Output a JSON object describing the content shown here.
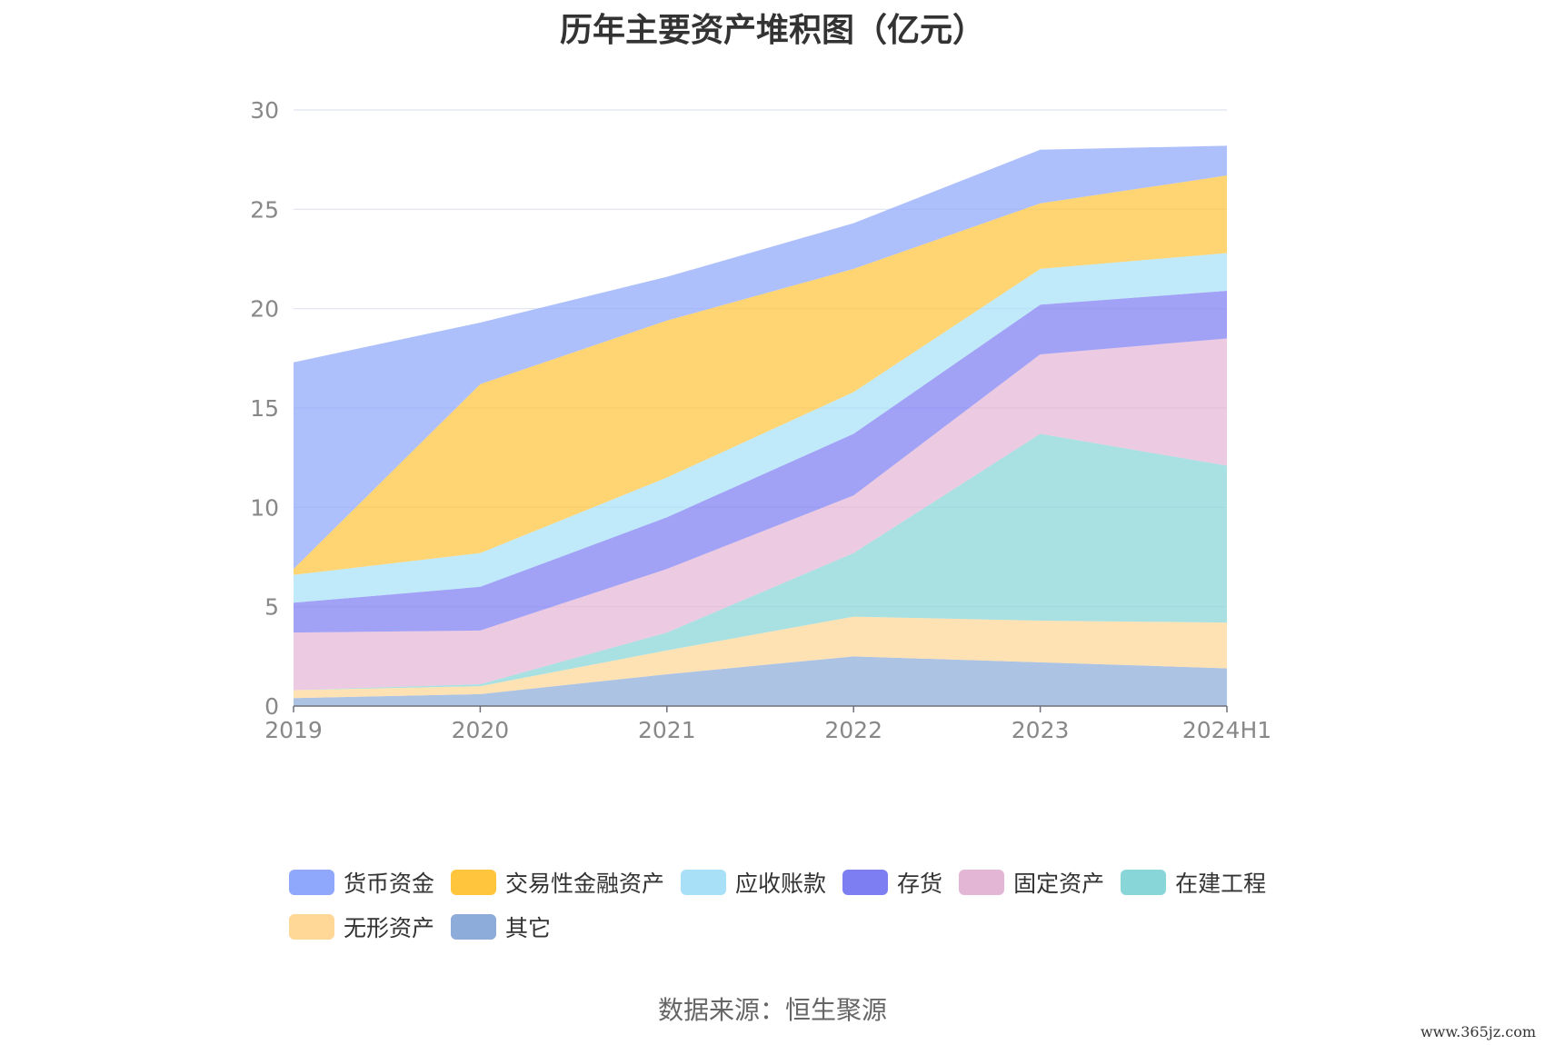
{
  "source_note": "数据来源：恒生聚源",
  "watermark": "www.365jz.com",
  "chart_data": {
    "type": "area",
    "stacked": true,
    "title": "历年主要资产堆积图（亿元）",
    "xlabel": "",
    "ylabel": "",
    "categories": [
      "2019",
      "2020",
      "2021",
      "2022",
      "2023",
      "2024H1"
    ],
    "ylim": [
      0,
      30
    ],
    "yticks": [
      0,
      5,
      10,
      15,
      20,
      25,
      30
    ],
    "grid": true,
    "legend_position": "bottom",
    "series": [
      {
        "name": "其它",
        "color": "#8eacd9",
        "values": [
          0.4,
          0.6,
          1.6,
          2.5,
          2.2,
          1.9
        ]
      },
      {
        "name": "无形资产",
        "color": "#ffd797",
        "values": [
          0.4,
          0.4,
          1.2,
          2.0,
          2.1,
          2.3
        ]
      },
      {
        "name": "在建工程",
        "color": "#88d6d8",
        "values": [
          0.0,
          0.1,
          0.9,
          3.2,
          9.4,
          7.9
        ]
      },
      {
        "name": "固定资产",
        "color": "#e4b6d6",
        "values": [
          2.9,
          2.7,
          3.2,
          2.9,
          4.0,
          6.4
        ]
      },
      {
        "name": "存货",
        "color": "#7d7ef2",
        "values": [
          1.5,
          2.2,
          2.6,
          3.1,
          2.5,
          2.4
        ]
      },
      {
        "name": "应收账款",
        "color": "#a8e0f8",
        "values": [
          1.4,
          1.7,
          2.0,
          2.1,
          1.8,
          1.9
        ]
      },
      {
        "name": "交易性金融资产",
        "color": "#ffc53d",
        "values": [
          0.3,
          8.5,
          7.9,
          6.2,
          3.3,
          3.9
        ]
      },
      {
        "name": "货币资金",
        "color": "#8fa8fb",
        "values": [
          10.4,
          3.1,
          2.2,
          2.3,
          2.7,
          1.5
        ]
      }
    ],
    "legend_order": [
      "货币资金",
      "交易性金融资产",
      "应收账款",
      "存货",
      "固定资产",
      "在建工程",
      "无形资产",
      "其它"
    ]
  }
}
